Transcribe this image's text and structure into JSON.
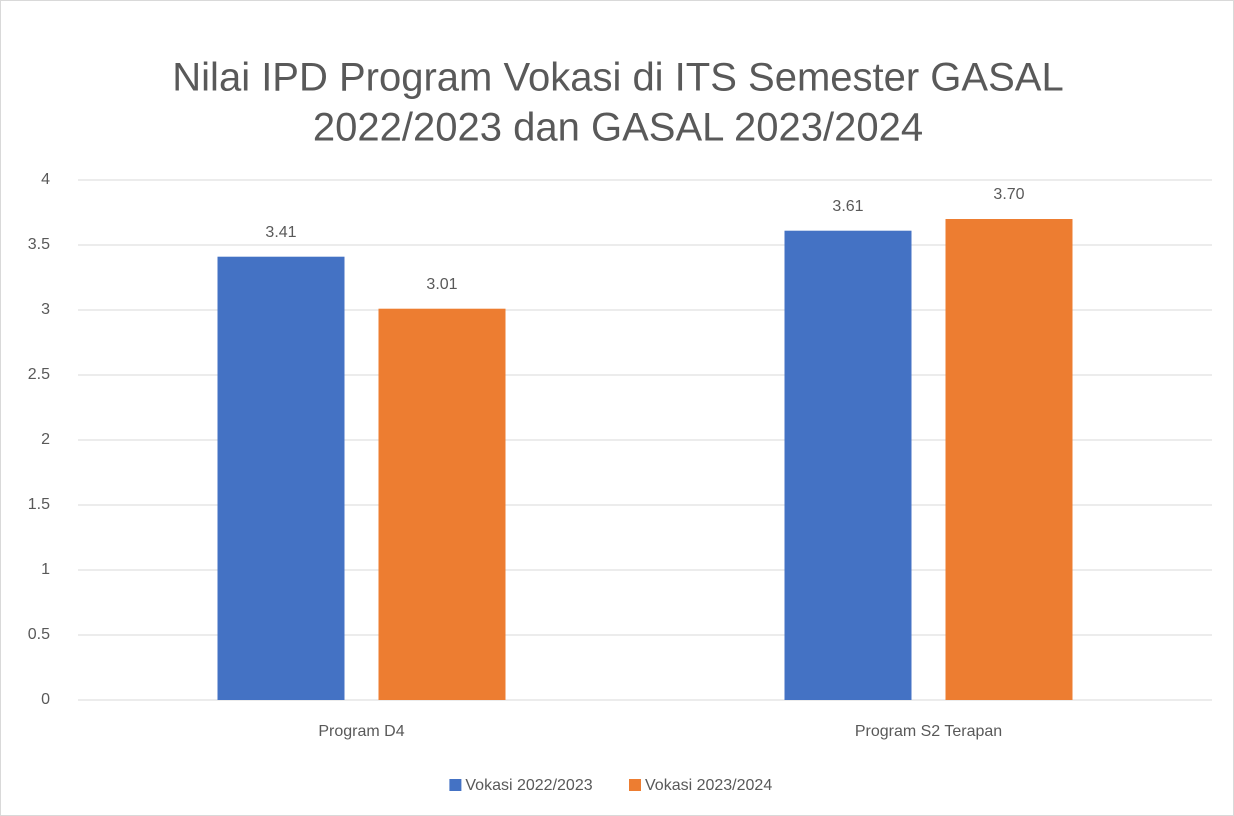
{
  "chart_data": {
    "type": "bar",
    "title": [
      "Nilai IPD Program Vokasi di ITS Semester GASAL",
      "2022/2023 dan GASAL 2023/2024"
    ],
    "categories": [
      "Program D4",
      "Program S2 Terapan"
    ],
    "series": [
      {
        "name": "Vokasi 2022/2023",
        "color": "#4472c4",
        "values": [
          3.41,
          3.61
        ]
      },
      {
        "name": "Vokasi 2023/2024",
        "color": "#ed7d31",
        "values": [
          3.01,
          3.7
        ],
        "value_labels": [
          "3.01",
          "3.70"
        ]
      }
    ],
    "ylim": [
      0,
      4
    ],
    "yticks": [
      0,
      0.5,
      1,
      1.5,
      2,
      2.5,
      3,
      3.5,
      4
    ],
    "grid": true,
    "legend": "bottom"
  }
}
